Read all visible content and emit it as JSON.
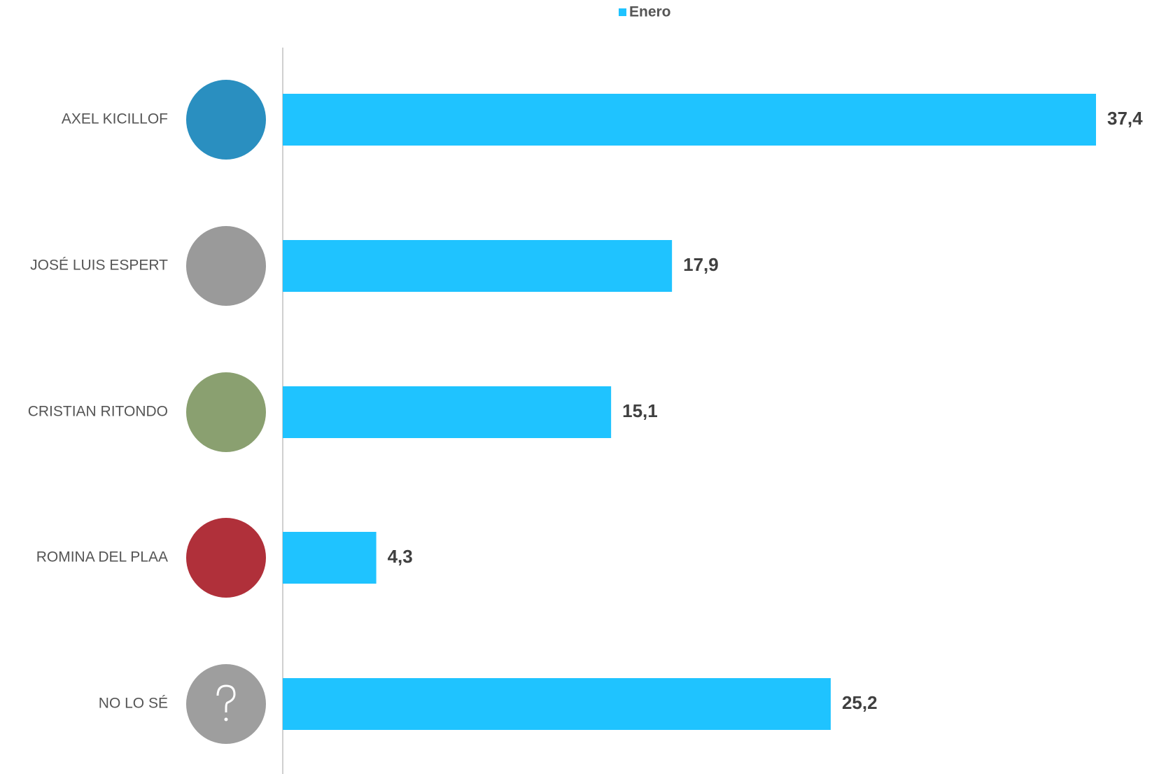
{
  "chart_data": {
    "type": "hbar",
    "categories": [
      "AXEL KICILLOF",
      "JOSÉ LUIS ESPERT",
      "CRISTIAN RITONDO",
      "ROMINA DEL PLAA",
      "NO LO SÉ"
    ],
    "series": [
      {
        "name": "Enero",
        "color": "#1fc3ff",
        "values": [
          37.4,
          17.9,
          15.1,
          4.3,
          25.2
        ],
        "value_labels": [
          "37,4",
          "17,9",
          "15,1",
          "4,3",
          "25,2"
        ]
      }
    ]
  }
}
